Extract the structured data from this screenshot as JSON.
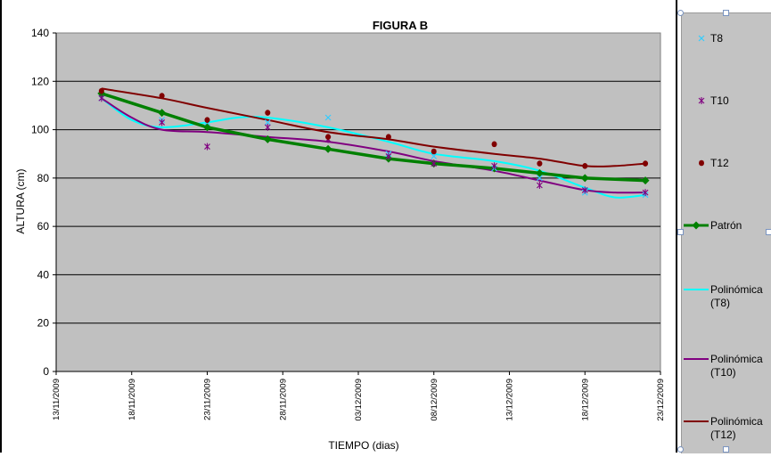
{
  "chart_data": {
    "type": "line",
    "title": "FIGURA B",
    "xlabel": "TIEMPO (dias)",
    "ylabel": "ALTURA (cm)",
    "ylim": [
      0,
      140
    ],
    "yticks": [
      0,
      20,
      40,
      60,
      80,
      100,
      120,
      140
    ],
    "xlim": [
      "13/11/2009",
      "23/12/2009"
    ],
    "xticks": [
      "13/11/2009",
      "18/11/2009",
      "23/11/2009",
      "28/11/2009",
      "03/12/2009",
      "08/12/2009",
      "13/12/2009",
      "18/12/2009",
      "23/12/2009"
    ],
    "grid": true,
    "legend_position": "right",
    "plot_background": "#c0c0c0",
    "series": [
      {
        "name": "T8",
        "kind": "scatter",
        "marker": "x",
        "color": "#33ccff",
        "points": [
          [
            "16/11/2009",
            113
          ],
          [
            "20/11/2009",
            104
          ],
          [
            "23/11/2009",
            103
          ],
          [
            "27/11/2009",
            103
          ],
          [
            "01/12/2009",
            105
          ],
          [
            "05/12/2009",
            90
          ],
          [
            "08/12/2009",
            89
          ],
          [
            "12/12/2009",
            84
          ],
          [
            "15/12/2009",
            80
          ],
          [
            "18/12/2009",
            74
          ],
          [
            "22/12/2009",
            73
          ]
        ]
      },
      {
        "name": "T10",
        "kind": "scatter",
        "marker": "star",
        "color": "#800080",
        "points": [
          [
            "16/11/2009",
            113
          ],
          [
            "20/11/2009",
            103
          ],
          [
            "23/11/2009",
            93
          ],
          [
            "27/11/2009",
            101
          ],
          [
            "01/12/2009",
            96
          ],
          [
            "05/12/2009",
            89
          ],
          [
            "08/12/2009",
            86
          ],
          [
            "12/12/2009",
            85
          ],
          [
            "15/12/2009",
            77
          ],
          [
            "18/12/2009",
            75
          ],
          [
            "22/12/2009",
            74
          ]
        ]
      },
      {
        "name": "T12",
        "kind": "scatter",
        "marker": "dot",
        "color": "#800000",
        "points": [
          [
            "16/11/2009",
            116
          ],
          [
            "20/11/2009",
            114
          ],
          [
            "23/11/2009",
            104
          ],
          [
            "27/11/2009",
            107
          ],
          [
            "01/12/2009",
            97
          ],
          [
            "05/12/2009",
            97
          ],
          [
            "08/12/2009",
            91
          ],
          [
            "12/12/2009",
            94
          ],
          [
            "15/12/2009",
            86
          ],
          [
            "18/12/2009",
            85
          ],
          [
            "22/12/2009",
            86
          ]
        ]
      },
      {
        "name": "Patrón",
        "kind": "line",
        "marker": "diamond",
        "color": "#008000",
        "points": [
          [
            "16/11/2009",
            115
          ],
          [
            "20/11/2009",
            107
          ],
          [
            "23/11/2009",
            101
          ],
          [
            "27/11/2009",
            96
          ],
          [
            "01/12/2009",
            92
          ],
          [
            "05/12/2009",
            88
          ],
          [
            "08/12/2009",
            86
          ],
          [
            "12/12/2009",
            84
          ],
          [
            "15/12/2009",
            82
          ],
          [
            "18/12/2009",
            80
          ],
          [
            "22/12/2009",
            79
          ]
        ]
      },
      {
        "name": "Polinómica (T8)",
        "kind": "trend",
        "color": "#00ffff",
        "points": [
          [
            "16/11/2009",
            113
          ],
          [
            "18/11/2009",
            104
          ],
          [
            "20/11/2009",
            101
          ],
          [
            "23/11/2009",
            103
          ],
          [
            "25/11/2009",
            105
          ],
          [
            "27/11/2009",
            105
          ],
          [
            "01/12/2009",
            101
          ],
          [
            "05/12/2009",
            95
          ],
          [
            "08/12/2009",
            90
          ],
          [
            "12/12/2009",
            87
          ],
          [
            "15/12/2009",
            83
          ],
          [
            "18/12/2009",
            76
          ],
          [
            "20/12/2009",
            72
          ],
          [
            "22/12/2009",
            73
          ]
        ]
      },
      {
        "name": "Polinómica (T10)",
        "kind": "trend",
        "color": "#800080",
        "points": [
          [
            "16/11/2009",
            113
          ],
          [
            "18/11/2009",
            105
          ],
          [
            "20/11/2009",
            100
          ],
          [
            "23/11/2009",
            99
          ],
          [
            "27/11/2009",
            97
          ],
          [
            "01/12/2009",
            95
          ],
          [
            "05/12/2009",
            91
          ],
          [
            "08/12/2009",
            87
          ],
          [
            "12/12/2009",
            83
          ],
          [
            "15/12/2009",
            79
          ],
          [
            "18/12/2009",
            75
          ],
          [
            "20/12/2009",
            74
          ],
          [
            "22/12/2009",
            74
          ]
        ]
      },
      {
        "name": "Polinómica (T12)",
        "kind": "trend",
        "color": "#800000",
        "points": [
          [
            "16/11/2009",
            117
          ],
          [
            "20/11/2009",
            113
          ],
          [
            "23/11/2009",
            109
          ],
          [
            "27/11/2009",
            104
          ],
          [
            "01/12/2009",
            99
          ],
          [
            "05/12/2009",
            96
          ],
          [
            "08/12/2009",
            93
          ],
          [
            "12/12/2009",
            90
          ],
          [
            "15/12/2009",
            88
          ],
          [
            "18/12/2009",
            85
          ],
          [
            "20/12/2009",
            85
          ],
          [
            "22/12/2009",
            86
          ]
        ]
      }
    ]
  },
  "legend": {
    "items": [
      {
        "label": "T8"
      },
      {
        "label": "T10"
      },
      {
        "label": "T12"
      },
      {
        "label": "Patrón"
      },
      {
        "label": "Polinómica\n(T8)"
      },
      {
        "label": "Polinómica\n(T10)"
      },
      {
        "label": "Polinómica\n(T12)"
      }
    ]
  }
}
